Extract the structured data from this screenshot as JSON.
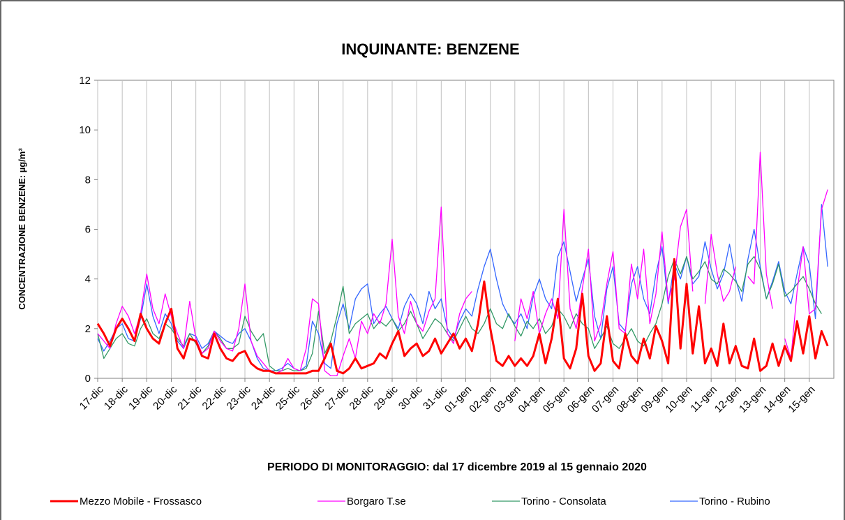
{
  "chart_data": {
    "type": "line",
    "title": "INQUINANTE: BENZENE",
    "xlabel": "PERIODO DI MONITORAGGIO: dal 17 dicembre 2019 al 15 gennaio 2020",
    "ylabel": "CONCENTRAZIONE BENZENE: µg/m³",
    "x": [
      0,
      0.25,
      0.5,
      0.75,
      1,
      1.25,
      1.5,
      1.75,
      2,
      2.25,
      2.5,
      2.75,
      3,
      3.25,
      3.5,
      3.75,
      4,
      4.25,
      4.5,
      4.75,
      5,
      5.25,
      5.5,
      5.75,
      6,
      6.25,
      6.5,
      6.75,
      7,
      7.25,
      7.5,
      7.75,
      8,
      8.25,
      8.5,
      8.75,
      9,
      9.25,
      9.5,
      9.75,
      10,
      10.25,
      10.5,
      10.75,
      11,
      11.25,
      11.5,
      11.75,
      12,
      12.25,
      12.5,
      12.75,
      13,
      13.25,
      13.5,
      13.75,
      14,
      14.25,
      14.5,
      14.75,
      15,
      15.25,
      15.5,
      15.75,
      16,
      16.25,
      16.5,
      16.75,
      17,
      17.25,
      17.5,
      17.75,
      18,
      18.25,
      18.5,
      18.75,
      19,
      19.25,
      19.5,
      19.75,
      20,
      20.25,
      20.5,
      20.75,
      21,
      21.25,
      21.5,
      21.75,
      22,
      22.25,
      22.5,
      22.75,
      23,
      23.25,
      23.5,
      23.75,
      24,
      24.25,
      24.5,
      24.75,
      25,
      25.25,
      25.5,
      25.75,
      26,
      26.25,
      26.5,
      26.75,
      27,
      27.25,
      27.5,
      27.75,
      28,
      28.25,
      28.5,
      28.75,
      29,
      29.25,
      29.5,
      29.75
    ],
    "series": [
      {
        "name": "Mezzo Mobile - Frossasco",
        "color": "#ff0000",
        "values": [
          2.2,
          1.8,
          1.3,
          2.0,
          2.4,
          2.0,
          1.5,
          2.6,
          2.0,
          1.6,
          1.4,
          2.2,
          2.8,
          1.2,
          0.8,
          1.6,
          1.5,
          0.9,
          0.8,
          1.8,
          1.2,
          0.8,
          0.7,
          1.0,
          1.1,
          0.6,
          0.4,
          0.3,
          0.3,
          0.2,
          0.2,
          0.2,
          0.2,
          0.2,
          0.2,
          0.3,
          0.3,
          0.8,
          1.4,
          0.3,
          0.2,
          0.4,
          0.8,
          0.4,
          0.5,
          0.6,
          1.0,
          0.8,
          1.4,
          1.9,
          0.9,
          1.2,
          1.4,
          0.9,
          1.1,
          1.6,
          1.0,
          1.4,
          1.8,
          1.2,
          1.6,
          1.1,
          2.2,
          3.9,
          2.0,
          0.7,
          0.5,
          0.9,
          0.5,
          0.8,
          0.5,
          0.9,
          1.8,
          0.6,
          1.6,
          3.2,
          0.8,
          0.4,
          1.2,
          3.4,
          0.9,
          0.3,
          0.6,
          2.5,
          0.7,
          0.4,
          1.8,
          0.9,
          0.6,
          1.6,
          0.8,
          2.1,
          1.5,
          0.6,
          4.8,
          1.2,
          3.8,
          1.0,
          2.9,
          0.6,
          1.2,
          0.5,
          2.2,
          0.6,
          1.3,
          0.5,
          0.4,
          1.6,
          0.3,
          0.5,
          1.4,
          0.5,
          1.3,
          0.7,
          2.3,
          1.0,
          2.5,
          0.8,
          1.9,
          1.3
        ]
      },
      {
        "name": "Borgaro T.se",
        "color": "#ff00ff",
        "values": [
          1.8,
          1.5,
          1.2,
          2.2,
          2.9,
          2.5,
          1.8,
          2.6,
          4.2,
          2.8,
          2.2,
          3.4,
          2.5,
          1.8,
          1.2,
          3.1,
          1.6,
          1.0,
          1.2,
          1.9,
          1.5,
          1.2,
          1.1,
          2.0,
          3.8,
          1.5,
          0.9,
          0.6,
          0.3,
          0.2,
          0.3,
          0.8,
          0.4,
          0.3,
          1.2,
          3.2,
          3.0,
          0.3,
          0.1,
          0.1,
          0.9,
          1.6,
          0.8,
          2.3,
          1.8,
          2.6,
          2.2,
          3.0,
          5.6,
          2.5,
          1.8,
          3.1,
          2.2,
          1.9,
          2.7,
          3.2,
          6.9,
          1.8,
          1.4,
          2.6,
          3.2,
          3.5,
          null,
          null,
          null,
          null,
          null,
          null,
          1.5,
          3.2,
          2.4,
          3.5,
          1.8,
          2.6,
          3.2,
          2.4,
          6.8,
          2.8,
          2.0,
          3.6,
          5.2,
          1.5,
          2.2,
          3.8,
          5.1,
          2.0,
          1.8,
          4.6,
          3.2,
          5.2,
          2.2,
          3.4,
          5.9,
          3.1,
          4.0,
          6.1,
          6.8,
          3.5,
          null,
          3.0,
          5.8,
          4.2,
          3.1,
          3.5,
          4.5,
          null,
          4.1,
          3.8,
          9.1,
          4.2,
          2.8,
          null,
          1.6,
          0.8,
          3.5,
          5.3,
          2.6,
          2.8,
          6.8,
          7.6
        ]
      },
      {
        "name": "Torino - Consolata",
        "color": "#339966",
        "values": [
          1.8,
          0.8,
          1.2,
          1.6,
          1.8,
          1.4,
          1.3,
          2.0,
          2.4,
          1.8,
          1.6,
          2.2,
          2.0,
          1.6,
          1.3,
          1.8,
          1.4,
          1.0,
          1.3,
          1.9,
          1.6,
          1.2,
          1.2,
          1.4,
          2.5,
          1.9,
          1.5,
          1.8,
          0.5,
          0.3,
          0.3,
          0.4,
          0.3,
          0.3,
          0.4,
          1.0,
          2.7,
          1.0,
          1.5,
          2.5,
          3.7,
          1.8,
          2.2,
          2.4,
          2.6,
          2.0,
          2.3,
          2.1,
          2.4,
          1.9,
          2.2,
          2.7,
          2.2,
          1.6,
          2.0,
          2.4,
          2.2,
          1.8,
          1.5,
          2.0,
          2.5,
          2.0,
          1.8,
          2.2,
          2.8,
          2.2,
          2.0,
          2.6,
          2.1,
          1.7,
          2.3,
          2.0,
          2.4,
          1.8,
          2.1,
          2.8,
          2.5,
          2.0,
          2.6,
          2.2,
          2.0,
          1.2,
          1.6,
          2.1,
          1.4,
          1.2,
          1.6,
          2.0,
          1.5,
          1.3,
          1.8,
          2.2,
          3.0,
          4.1,
          4.8,
          4.2,
          4.9,
          4.0,
          4.3,
          4.7,
          4.0,
          3.8,
          4.4,
          4.2,
          3.9,
          3.5,
          4.6,
          4.9,
          4.4,
          3.2,
          3.8,
          4.6,
          3.3,
          3.5,
          3.8,
          4.1,
          3.6,
          3.0,
          2.6,
          null
        ]
      },
      {
        "name": "Torino - Rubino",
        "color": "#3366ff",
        "values": [
          1.6,
          1.1,
          1.5,
          2.0,
          2.2,
          1.6,
          1.5,
          2.4,
          3.8,
          2.5,
          1.8,
          2.6,
          2.2,
          1.5,
          1.2,
          1.8,
          1.7,
          1.2,
          1.4,
          1.9,
          1.7,
          1.5,
          1.4,
          1.8,
          2.0,
          1.5,
          0.8,
          0.4,
          0.3,
          0.3,
          0.4,
          0.6,
          0.4,
          0.3,
          0.5,
          2.3,
          1.8,
          0.6,
          0.4,
          2.2,
          3.0,
          2.0,
          3.2,
          3.6,
          3.8,
          2.2,
          2.6,
          2.9,
          2.4,
          2.0,
          2.9,
          3.4,
          3.0,
          2.2,
          3.5,
          2.8,
          3.2,
          2.0,
          1.6,
          2.3,
          2.8,
          2.5,
          3.6,
          4.5,
          5.2,
          4.0,
          3.0,
          2.5,
          2.2,
          2.6,
          2.0,
          3.3,
          4.0,
          3.2,
          2.8,
          4.9,
          5.5,
          4.3,
          3.1,
          4.0,
          4.8,
          2.5,
          1.6,
          3.6,
          4.5,
          2.2,
          1.9,
          3.8,
          4.5,
          3.2,
          2.6,
          4.2,
          5.3,
          3.0,
          4.6,
          4.0,
          4.9,
          3.8,
          4.1,
          5.5,
          4.4,
          3.6,
          4.2,
          5.4,
          4.0,
          3.1,
          4.8,
          6.0,
          4.5,
          3.2,
          3.9,
          4.7,
          3.5,
          3.0,
          4.2,
          5.3,
          4.6,
          2.4,
          7.0,
          4.5
        ]
      }
    ],
    "xlim": [
      0,
      30
    ],
    "xticks": [
      {
        "value": 0,
        "label": "17-dic"
      },
      {
        "value": 1,
        "label": "18-dic"
      },
      {
        "value": 2,
        "label": "19-dic"
      },
      {
        "value": 3,
        "label": "20-dic"
      },
      {
        "value": 4,
        "label": "21-dic"
      },
      {
        "value": 5,
        "label": "22-dic"
      },
      {
        "value": 6,
        "label": "23-dic"
      },
      {
        "value": 7,
        "label": "24-dic"
      },
      {
        "value": 8,
        "label": "25-dic"
      },
      {
        "value": 9,
        "label": "26-dic"
      },
      {
        "value": 10,
        "label": "27-dic"
      },
      {
        "value": 11,
        "label": "28-dic"
      },
      {
        "value": 12,
        "label": "29-dic"
      },
      {
        "value": 13,
        "label": "30-dic"
      },
      {
        "value": 14,
        "label": "31-dic"
      },
      {
        "value": 15,
        "label": "01-gen"
      },
      {
        "value": 16,
        "label": "02-gen"
      },
      {
        "value": 17,
        "label": "03-gen"
      },
      {
        "value": 18,
        "label": "04-gen"
      },
      {
        "value": 19,
        "label": "05-gen"
      },
      {
        "value": 20,
        "label": "06-gen"
      },
      {
        "value": 21,
        "label": "07-gen"
      },
      {
        "value": 22,
        "label": "08-gen"
      },
      {
        "value": 23,
        "label": "09-gen"
      },
      {
        "value": 24,
        "label": "10-gen"
      },
      {
        "value": 25,
        "label": "11-gen"
      },
      {
        "value": 26,
        "label": "12-gen"
      },
      {
        "value": 27,
        "label": "13-gen"
      },
      {
        "value": 28,
        "label": "14-gen"
      },
      {
        "value": 29,
        "label": "15-gen"
      }
    ],
    "ylim": [
      0,
      12
    ],
    "yticks": [
      0,
      2,
      4,
      6,
      8,
      10,
      12
    ],
    "grid": true,
    "legend": "bottom"
  }
}
